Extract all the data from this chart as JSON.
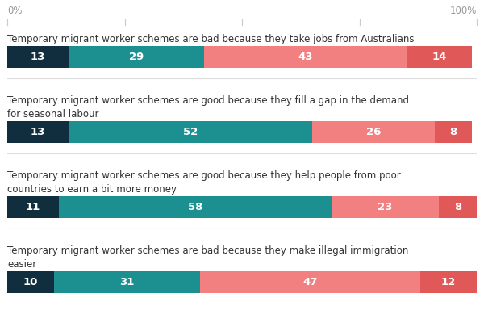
{
  "bars": [
    {
      "label": "Temporary migrant worker schemes are bad because they take jobs from Australians",
      "label_lines": [
        "Temporary migrant worker schemes are bad because they take jobs from Australians"
      ],
      "values": [
        13,
        29,
        43,
        14
      ]
    },
    {
      "label": "Temporary migrant worker schemes are good because they fill a gap in the demand\nfor seasonal labour",
      "label_lines": [
        "Temporary migrant worker schemes are good because they fill a gap in the demand",
        "for seasonal labour"
      ],
      "values": [
        13,
        52,
        26,
        8
      ]
    },
    {
      "label": "Temporary migrant worker schemes are good because they help people from poor\ncountries to earn a bit more money",
      "label_lines": [
        "Temporary migrant worker schemes are good because they help people from poor",
        "countries to earn a bit more money"
      ],
      "values": [
        11,
        58,
        23,
        8
      ]
    },
    {
      "label": "Temporary migrant worker schemes are bad because they make illegal immigration\neasier",
      "label_lines": [
        "Temporary migrant worker schemes are bad because they make illegal immigration",
        "easier"
      ],
      "values": [
        10,
        31,
        47,
        12
      ]
    }
  ],
  "colors": [
    "#112e3e",
    "#1c9090",
    "#f28080",
    "#e05858"
  ],
  "text_color": "#ffffff",
  "label_color": "#333333",
  "bg_color": "#ffffff",
  "axis_label_color": "#999999",
  "separator_color": "#dddddd",
  "tick_color": "#cccccc"
}
